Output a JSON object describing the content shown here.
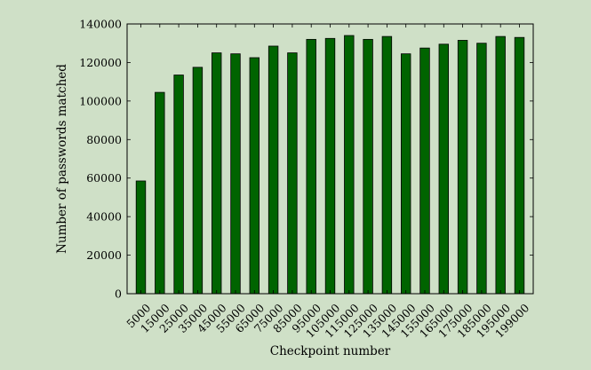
{
  "chart_data": {
    "type": "bar",
    "title": "",
    "xlabel": "Checkpoint number",
    "ylabel": "Number of passwords matched",
    "ylim": [
      0,
      140000
    ],
    "yticks": [
      0,
      20000,
      40000,
      60000,
      80000,
      100000,
      120000,
      140000
    ],
    "grid": false,
    "bar_color": "#006400",
    "background_color": "#cfe0c7",
    "categories": [
      "5000",
      "15000",
      "25000",
      "35000",
      "45000",
      "55000",
      "65000",
      "75000",
      "85000",
      "95000",
      "105000",
      "115000",
      "125000",
      "135000",
      "145000",
      "155000",
      "165000",
      "175000",
      "185000",
      "195000",
      "199000"
    ],
    "values": [
      58500,
      104500,
      113500,
      117500,
      125000,
      124500,
      122500,
      128500,
      125000,
      132000,
      132500,
      134000,
      132000,
      133500,
      124500,
      127500,
      129500,
      131500,
      130000,
      133500,
      133000
    ]
  }
}
